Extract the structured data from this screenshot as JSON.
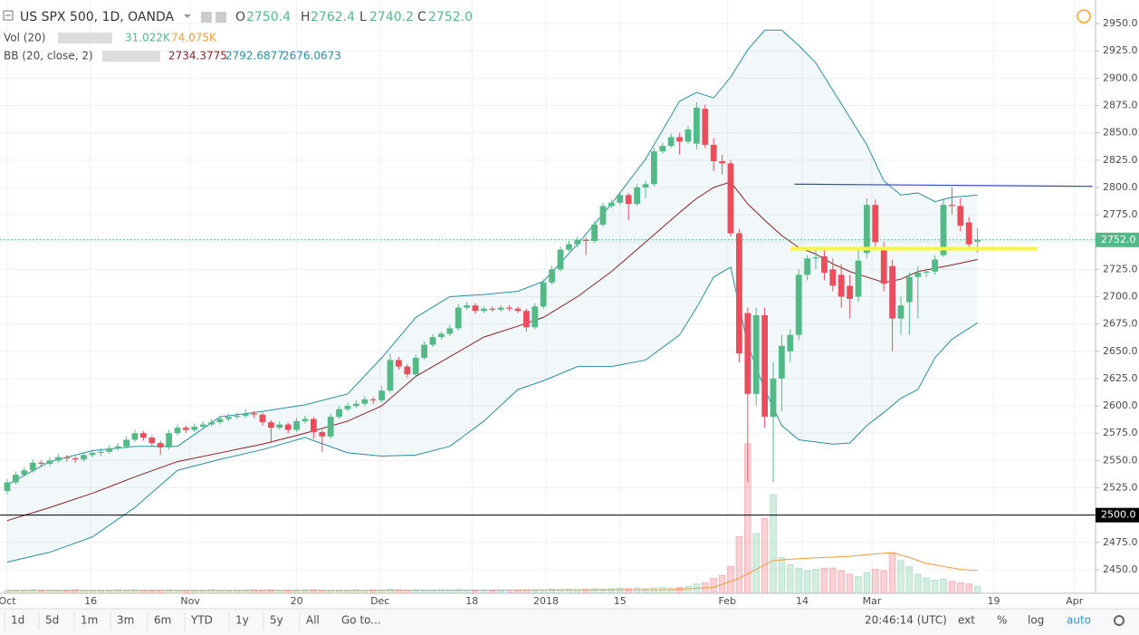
{
  "chart_data": {
    "type": "candlestick",
    "header": {
      "title": "US SPX 500, 1D, OANDA",
      "o": "O",
      "open": 2750.4,
      "h": "H",
      "high": 2762.4,
      "l": "L",
      "low": 2740.2,
      "c": "C",
      "close": {
        "value": 2752,
        "label": "2752.0"
      },
      "vol_name": "Vol (20)",
      "vol_last": "31.022K",
      "vol_ma": "74.075K",
      "bb_name": "BB (20, close, 2)",
      "bb_mid": 2734.3775,
      "bb_up": 2792.6877,
      "bb_low": 2676.0673
    },
    "up_color": "#53b987",
    "down_color": "#eb4d5c",
    "band_color": "#2a8ea6",
    "mid_color": "#8b1f1f",
    "vol_ma_color": "#f59a3c",
    "xlim": [
      -0.85,
      127.87
    ],
    "ylim": [
      2428.4,
      2971.6
    ],
    "vlim": [
      0,
      250
    ],
    "grid": true,
    "xticks": [
      {
        "value": 0,
        "label": "Oct"
      },
      {
        "value": 9.8,
        "label": "16"
      },
      {
        "value": 21.5,
        "label": "Nov"
      },
      {
        "value": 34,
        "label": "20"
      },
      {
        "value": 43.8,
        "label": "Dec"
      },
      {
        "value": 54.6,
        "label": "18"
      },
      {
        "value": 63.3,
        "label": "2018"
      },
      {
        "value": 72,
        "label": "15"
      },
      {
        "value": 84.6,
        "label": "Feb"
      },
      {
        "value": 93.4,
        "label": "14"
      },
      {
        "value": 101.6,
        "label": "Mar"
      },
      {
        "value": 115.9,
        "label": "19"
      },
      {
        "value": 125.4,
        "label": "Apr"
      }
    ],
    "yticks": [
      {
        "value": 2450,
        "label": "2450.0"
      },
      {
        "value": 2475,
        "label": "2475.0"
      },
      {
        "value": 2500,
        "label": "2500.0"
      },
      {
        "value": 2525,
        "label": "2525.0"
      },
      {
        "value": 2550,
        "label": "2550.0"
      },
      {
        "value": 2575,
        "label": "2575.0"
      },
      {
        "value": 2600,
        "label": "2600.0"
      },
      {
        "value": 2625,
        "label": "2625.0"
      },
      {
        "value": 2650,
        "label": "2650.0"
      },
      {
        "value": 2675,
        "label": "2675.0"
      },
      {
        "value": 2700,
        "label": "2700.0"
      },
      {
        "value": 2725,
        "label": "2725.0"
      },
      {
        "value": 2750,
        "label": "2750.0"
      },
      {
        "value": 2775,
        "label": "2775.0"
      },
      {
        "value": 2800,
        "label": "2800.0"
      },
      {
        "value": 2825,
        "label": "2825.0"
      },
      {
        "value": 2850,
        "label": "2850.0"
      },
      {
        "value": 2875,
        "label": "2875.0"
      },
      {
        "value": 2900,
        "label": "2900.0"
      },
      {
        "value": 2925,
        "label": "2925.0"
      },
      {
        "value": 2950,
        "label": "2950.0"
      }
    ],
    "candles": [
      [
        2522,
        2533,
        2519,
        2530
      ],
      [
        2530,
        2540,
        2528,
        2537
      ],
      [
        2537,
        2544,
        2535,
        2541
      ],
      [
        2541,
        2551,
        2539,
        2548
      ],
      [
        2548,
        2550,
        2544,
        2547
      ],
      [
        2547,
        2553,
        2545,
        2550
      ],
      [
        2550,
        2556,
        2548,
        2553
      ],
      [
        2553,
        2555,
        2549,
        2552
      ],
      [
        2552,
        2554,
        2548,
        2551
      ],
      [
        2551,
        2558,
        2549,
        2555
      ],
      [
        2555,
        2560,
        2553,
        2557
      ],
      [
        2557,
        2561,
        2554,
        2558
      ],
      [
        2558,
        2564,
        2556,
        2561
      ],
      [
        2561,
        2566,
        2559,
        2563
      ],
      [
        2563,
        2572,
        2561,
        2569
      ],
      [
        2569,
        2578,
        2567,
        2575
      ],
      [
        2575,
        2577,
        2568,
        2571
      ],
      [
        2571,
        2573,
        2563,
        2566
      ],
      [
        2566,
        2568,
        2555,
        2562
      ],
      [
        2562,
        2578,
        2560,
        2575
      ],
      [
        2575,
        2583,
        2573,
        2580
      ],
      [
        2580,
        2582,
        2575,
        2578
      ],
      [
        2578,
        2584,
        2576,
        2581
      ],
      [
        2581,
        2586,
        2579,
        2583
      ],
      [
        2583,
        2588,
        2581,
        2585
      ],
      [
        2585,
        2591,
        2583,
        2588
      ],
      [
        2588,
        2593,
        2586,
        2590
      ],
      [
        2590,
        2594,
        2588,
        2591
      ],
      [
        2591,
        2597,
        2589,
        2593
      ],
      [
        2593,
        2595,
        2589,
        2592
      ],
      [
        2592,
        2594,
        2582,
        2585
      ],
      [
        2585,
        2587,
        2566,
        2580
      ],
      [
        2580,
        2586,
        2578,
        2583
      ],
      [
        2583,
        2585,
        2575,
        2578
      ],
      [
        2578,
        2589,
        2576,
        2586
      ],
      [
        2586,
        2591,
        2584,
        2588
      ],
      [
        2588,
        2590,
        2570,
        2576
      ],
      [
        2576,
        2578,
        2558,
        2572
      ],
      [
        2572,
        2593,
        2570,
        2590
      ],
      [
        2590,
        2600,
        2588,
        2597
      ],
      [
        2597,
        2603,
        2595,
        2600
      ],
      [
        2600,
        2605,
        2598,
        2602
      ],
      [
        2602,
        2609,
        2600,
        2606
      ],
      [
        2606,
        2608,
        2602,
        2605
      ],
      [
        2605,
        2618,
        2603,
        2614
      ],
      [
        2614,
        2648,
        2612,
        2642
      ],
      [
        2642,
        2645,
        2633,
        2636
      ],
      [
        2636,
        2638,
        2626,
        2629
      ],
      [
        2629,
        2647,
        2627,
        2644
      ],
      [
        2644,
        2659,
        2642,
        2656
      ],
      [
        2656,
        2666,
        2654,
        2663
      ],
      [
        2663,
        2668,
        2661,
        2666
      ],
      [
        2666,
        2674,
        2664,
        2671
      ],
      [
        2671,
        2693,
        2669,
        2690
      ],
      [
        2690,
        2695,
        2688,
        2692
      ],
      [
        2692,
        2694,
        2684,
        2687
      ],
      [
        2687,
        2691,
        2685,
        2689
      ],
      [
        2689,
        2691,
        2686,
        2688
      ],
      [
        2688,
        2692,
        2686,
        2690
      ],
      [
        2690,
        2692,
        2687,
        2689
      ],
      [
        2689,
        2691,
        2685,
        2687
      ],
      [
        2687,
        2689,
        2668,
        2672
      ],
      [
        2672,
        2694,
        2670,
        2691
      ],
      [
        2691,
        2716,
        2689,
        2713
      ],
      [
        2713,
        2728,
        2711,
        2725
      ],
      [
        2725,
        2746,
        2723,
        2743
      ],
      [
        2743,
        2751,
        2741,
        2748
      ],
      [
        2748,
        2755,
        2745,
        2752
      ],
      [
        2752,
        2754,
        2738,
        2751
      ],
      [
        2751,
        2769,
        2749,
        2766
      ],
      [
        2766,
        2786,
        2764,
        2783
      ],
      [
        2783,
        2789,
        2781,
        2786
      ],
      [
        2786,
        2796,
        2784,
        2793
      ],
      [
        2793,
        2795,
        2770,
        2785
      ],
      [
        2785,
        2803,
        2783,
        2800
      ],
      [
        2800,
        2806,
        2790,
        2803
      ],
      [
        2803,
        2836,
        2801,
        2833
      ],
      [
        2833,
        2841,
        2831,
        2838
      ],
      [
        2838,
        2849,
        2836,
        2846
      ],
      [
        2846,
        2850,
        2830,
        2842
      ],
      [
        2842,
        2856,
        2840,
        2853
      ],
      [
        2840,
        2878,
        2835,
        2873
      ],
      [
        2872,
        2876,
        2836,
        2839
      ],
      [
        2839,
        2845,
        2815,
        2824
      ],
      [
        2824,
        2830,
        2812,
        2822
      ],
      [
        2822,
        2825,
        2755,
        2758
      ],
      [
        2758,
        2762,
        2640,
        2648
      ],
      [
        2685,
        2690,
        2530,
        2611
      ],
      [
        2611,
        2690,
        2600,
        2683
      ],
      [
        2683,
        2690,
        2580,
        2590
      ],
      [
        2590,
        2640,
        2530,
        2625
      ],
      [
        2625,
        2665,
        2595,
        2655
      ],
      [
        2650,
        2670,
        2640,
        2665
      ],
      [
        2665,
        2725,
        2660,
        2720
      ],
      [
        2720,
        2738,
        2715,
        2735
      ],
      [
        2735,
        2745,
        2725,
        2736
      ],
      [
        2737,
        2745,
        2715,
        2722
      ],
      [
        2725,
        2735,
        2705,
        2710
      ],
      [
        2720,
        2730,
        2690,
        2700
      ],
      [
        2710,
        2720,
        2680,
        2698
      ],
      [
        2700,
        2745,
        2695,
        2733
      ],
      [
        2740,
        2790,
        2735,
        2784
      ],
      [
        2784,
        2789,
        2745,
        2750
      ],
      [
        2745,
        2750,
        2705,
        2712
      ],
      [
        2728,
        2734,
        2650,
        2680
      ],
      [
        2680,
        2700,
        2665,
        2692
      ],
      [
        2695,
        2722,
        2665,
        2718
      ],
      [
        2718,
        2728,
        2680,
        2722
      ],
      [
        2722,
        2726,
        2718,
        2723
      ],
      [
        2723,
        2738,
        2720,
        2734
      ],
      [
        2738,
        2790,
        2736,
        2784
      ],
      [
        2784,
        2800,
        2775,
        2783
      ],
      [
        2783,
        2790,
        2760,
        2765
      ],
      [
        2768,
        2773,
        2745,
        2748
      ],
      [
        2750.4,
        2762.4,
        2740.2,
        2752
      ]
    ],
    "volume": [
      5,
      4,
      5,
      6,
      4,
      5,
      5,
      4,
      6,
      5,
      5,
      4,
      5,
      6,
      5,
      6,
      5,
      4,
      5,
      6,
      5,
      5,
      4,
      5,
      6,
      5,
      4,
      5,
      5,
      6,
      5,
      6,
      5,
      4,
      5,
      6,
      6,
      5,
      5,
      4,
      5,
      6,
      5,
      6,
      5,
      7,
      6,
      5,
      6,
      5,
      5,
      6,
      5,
      6,
      5,
      4,
      5,
      4,
      4,
      3,
      4,
      5,
      5,
      6,
      7,
      6,
      7,
      6,
      7,
      8,
      7,
      8,
      9,
      8,
      9,
      8,
      9,
      10,
      9,
      10,
      12,
      16,
      18,
      25,
      30,
      45,
      95,
      250,
      100,
      125,
      165,
      60,
      48,
      42,
      38,
      40,
      42,
      42,
      38,
      32,
      28,
      35,
      40,
      38,
      68,
      55,
      45,
      32,
      26,
      22,
      24,
      20,
      18,
      16,
      12
    ],
    "vol_ma": {
      "x": [
        0,
        40,
        78,
        83,
        86,
        88,
        90,
        93,
        96,
        99,
        102,
        104,
        106,
        108,
        110,
        112,
        114
      ],
      "values": [
        5,
        5,
        6,
        10,
        25,
        40,
        55,
        58,
        60,
        62,
        66,
        68,
        60,
        50,
        45,
        40,
        38
      ]
    },
    "bands": {
      "x": [
        0,
        5,
        10,
        15,
        20,
        25,
        30,
        35,
        40,
        44,
        48,
        52,
        56,
        60,
        63,
        67,
        71,
        75,
        79,
        81,
        83,
        85,
        87,
        89,
        91,
        93,
        95,
        97,
        99,
        101,
        103,
        105,
        107,
        109,
        111,
        114
      ],
      "upper": [
        2528,
        2549,
        2559,
        2563,
        2563,
        2590,
        2595,
        2601,
        2611,
        2644,
        2681,
        2700,
        2702,
        2705,
        2714,
        2748,
        2785,
        2826,
        2879,
        2887,
        2882,
        2901,
        2926,
        2944,
        2944,
        2930,
        2914,
        2889,
        2864,
        2839,
        2806,
        2793,
        2795,
        2787,
        2791,
        2793
      ],
      "middle": [
        2495,
        2507,
        2520,
        2535,
        2549,
        2557,
        2565,
        2575,
        2586,
        2600,
        2627,
        2645,
        2663,
        2673,
        2681,
        2700,
        2723,
        2750,
        2777,
        2790,
        2800,
        2805,
        2785,
        2770,
        2756,
        2745,
        2739,
        2730,
        2723,
        2718,
        2713,
        2716,
        2723,
        2726,
        2729,
        2734
      ],
      "lower": [
        2457,
        2466,
        2480,
        2507,
        2541,
        2551,
        2560,
        2571,
        2557,
        2554,
        2555,
        2563,
        2586,
        2615,
        2623,
        2636,
        2636,
        2642,
        2665,
        2690,
        2718,
        2727,
        2656,
        2615,
        2582,
        2569,
        2567,
        2565,
        2566,
        2582,
        2594,
        2607,
        2615,
        2644,
        2661,
        2676
      ]
    },
    "hlines": [
      {
        "value": 2500,
        "label": "2500.0",
        "color": "#000000"
      },
      {
        "value": 2752,
        "label": "2752.0",
        "color": "#53b987"
      }
    ],
    "trendlines": [
      {
        "x": [
          92.5,
          127.5
        ],
        "y": [
          2803,
          2801
        ],
        "color": "#3244d6"
      },
      {
        "x": [
          92,
          121
        ],
        "y": [
          2744,
          2744
        ],
        "color": "#f5f542"
      }
    ]
  },
  "toolbar": {
    "ranges": [
      "1d",
      "5d",
      "1m",
      "3m",
      "6m",
      "YTD",
      "1y",
      "5y",
      "All"
    ],
    "goto": "Go to...",
    "clock": "20:46:14 (UTC)",
    "ext": "ext",
    "percent": "%",
    "log": "log",
    "auto": "auto"
  }
}
